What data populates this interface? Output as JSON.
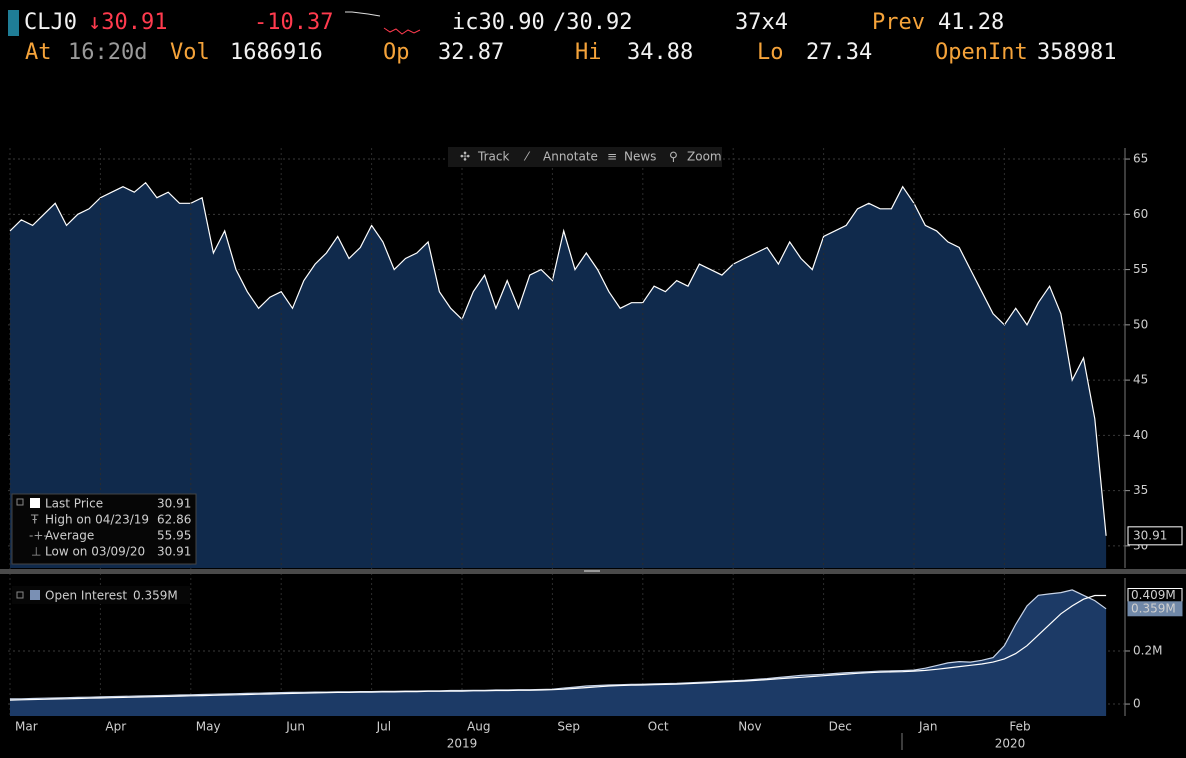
{
  "header": {
    "ticker": "CLJ0",
    "last": "↓30.91",
    "change": "-10.37",
    "bid": "ic30.90",
    "ask": "/30.92",
    "size": "37x4",
    "prev_label": "Prev",
    "prev": "41.28",
    "at_label": "At",
    "at": "16:20d",
    "vol_label": "Vol",
    "vol": "1686916",
    "op_label": "Op",
    "op": "32.87",
    "hi_label": "Hi",
    "hi": "34.88",
    "lo_label": "Lo",
    "lo": "27.34",
    "openint_label": "OpenInt",
    "openint": "358981"
  },
  "toolbar": [
    "Track",
    "Annotate",
    "News",
    "Zoom"
  ],
  "chart_data": [
    {
      "type": "area",
      "series": [
        {
          "name": "Last Price",
          "color": "#ffffff",
          "fill": "#102a4c",
          "values": [
            58.5,
            59.5,
            59,
            60,
            61,
            59,
            60,
            60.5,
            61.5,
            62,
            62.5,
            62,
            62.86,
            61.5,
            62,
            61,
            61,
            61.5,
            56.5,
            58.5,
            55,
            53,
            51.5,
            52.5,
            53,
            51.5,
            54,
            55.5,
            56.5,
            58,
            56,
            57,
            59,
            57.5,
            55,
            56,
            56.5,
            57.5,
            53,
            51.5,
            50.5,
            53,
            54.5,
            51.5,
            54,
            51.5,
            54.5,
            55,
            54,
            58.5,
            55,
            56.5,
            55,
            53,
            51.5,
            52,
            52,
            53.5,
            53,
            54,
            53.5,
            55.5,
            55,
            54.5,
            55.5,
            56,
            56.5,
            57,
            55.5,
            57.5,
            56,
            55,
            58,
            58.5,
            59,
            60.5,
            61,
            60.5,
            60.5,
            62.5,
            61,
            59,
            58.5,
            57.5,
            57,
            55,
            53,
            51,
            50,
            51.5,
            50,
            52,
            53.5,
            51,
            45,
            47,
            41.5,
            30.91
          ]
        }
      ],
      "ylim": [
        28,
        66
      ],
      "yticks": [
        30,
        35,
        40,
        45,
        50,
        55,
        60,
        65
      ],
      "grid": true,
      "stats": [
        {
          "label": "High on 04/23/19",
          "value": 62.86
        },
        {
          "label": "Average",
          "value": 55.95
        },
        {
          "label": "Low on 03/09/20",
          "value": 30.91
        }
      ]
    },
    {
      "type": "area",
      "categories": [
        "Mar",
        null,
        null,
        null,
        null,
        null,
        null,
        null,
        "Apr",
        null,
        null,
        null,
        null,
        null,
        null,
        null,
        "May",
        null,
        null,
        null,
        null,
        null,
        null,
        null,
        "Jun",
        null,
        null,
        null,
        null,
        null,
        null,
        null,
        "Jul",
        null,
        null,
        null,
        null,
        null,
        null,
        null,
        "Aug",
        null,
        null,
        null,
        null,
        null,
        null,
        null,
        "Sep",
        null,
        null,
        null,
        null,
        null,
        null,
        null,
        "Oct",
        null,
        null,
        null,
        null,
        null,
        null,
        null,
        "Nov",
        null,
        null,
        null,
        null,
        null,
        null,
        null,
        "Dec",
        null,
        null,
        null,
        null,
        null,
        null,
        null,
        "Jan",
        null,
        null,
        null,
        null,
        null,
        null,
        null,
        "Feb",
        null,
        null,
        null,
        null,
        null,
        null,
        null,
        null,
        null
      ],
      "year_labels": [
        "2019",
        "2020"
      ],
      "series": [
        {
          "name": "Open Interest",
          "color": "#c8d4e8",
          "fill": "#1c3a66",
          "values": [
            0.02,
            0.02,
            0.021,
            0.022,
            0.023,
            0.024,
            0.025,
            0.026,
            0.027,
            0.028,
            0.029,
            0.03,
            0.031,
            0.032,
            0.033,
            0.034,
            0.035,
            0.036,
            0.037,
            0.038,
            0.039,
            0.04,
            0.041,
            0.042,
            0.043,
            0.044,
            0.044,
            0.045,
            0.045,
            0.046,
            0.046,
            0.047,
            0.047,
            0.048,
            0.048,
            0.049,
            0.049,
            0.05,
            0.05,
            0.051,
            0.051,
            0.052,
            0.052,
            0.053,
            0.053,
            0.054,
            0.054,
            0.055,
            0.056,
            0.06,
            0.064,
            0.068,
            0.07,
            0.072,
            0.073,
            0.074,
            0.075,
            0.076,
            0.077,
            0.078,
            0.08,
            0.082,
            0.084,
            0.086,
            0.088,
            0.09,
            0.093,
            0.096,
            0.1,
            0.104,
            0.108,
            0.11,
            0.112,
            0.115,
            0.118,
            0.12,
            0.122,
            0.124,
            0.125,
            0.126,
            0.128,
            0.135,
            0.145,
            0.155,
            0.16,
            0.158,
            0.165,
            0.175,
            0.22,
            0.3,
            0.37,
            0.41,
            0.415,
            0.42,
            0.43,
            0.41,
            0.39,
            0.359
          ]
        },
        {
          "color": "#ffffff",
          "values": [
            0.015,
            0.016,
            0.017,
            0.018,
            0.019,
            0.02,
            0.021,
            0.022,
            0.023,
            0.024,
            0.025,
            0.026,
            0.027,
            0.028,
            0.029,
            0.03,
            0.031,
            0.032,
            0.033,
            0.034,
            0.035,
            0.036,
            0.037,
            0.038,
            0.039,
            0.04,
            0.041,
            0.042,
            0.043,
            0.044,
            0.044,
            0.045,
            0.045,
            0.046,
            0.046,
            0.047,
            0.047,
            0.048,
            0.048,
            0.049,
            0.049,
            0.05,
            0.05,
            0.051,
            0.051,
            0.052,
            0.052,
            0.053,
            0.054,
            0.056,
            0.059,
            0.062,
            0.065,
            0.068,
            0.07,
            0.071,
            0.072,
            0.073,
            0.074,
            0.075,
            0.077,
            0.079,
            0.081,
            0.083,
            0.085,
            0.087,
            0.089,
            0.092,
            0.095,
            0.098,
            0.101,
            0.104,
            0.107,
            0.11,
            0.113,
            0.116,
            0.118,
            0.12,
            0.121,
            0.122,
            0.124,
            0.127,
            0.131,
            0.136,
            0.141,
            0.146,
            0.151,
            0.158,
            0.17,
            0.19,
            0.22,
            0.26,
            0.3,
            0.34,
            0.37,
            0.395,
            0.409,
            0.409
          ]
        }
      ],
      "ylim": [
        -0.045,
        0.475
      ],
      "yticks": [
        0,
        {
          "value": 0.2,
          "label": "0.2M"
        }
      ],
      "grid": true,
      "value_markers": [
        {
          "value": 0.409,
          "label": "0.409M"
        },
        {
          "value": 0.359,
          "label": "0.359M"
        }
      ]
    }
  ]
}
